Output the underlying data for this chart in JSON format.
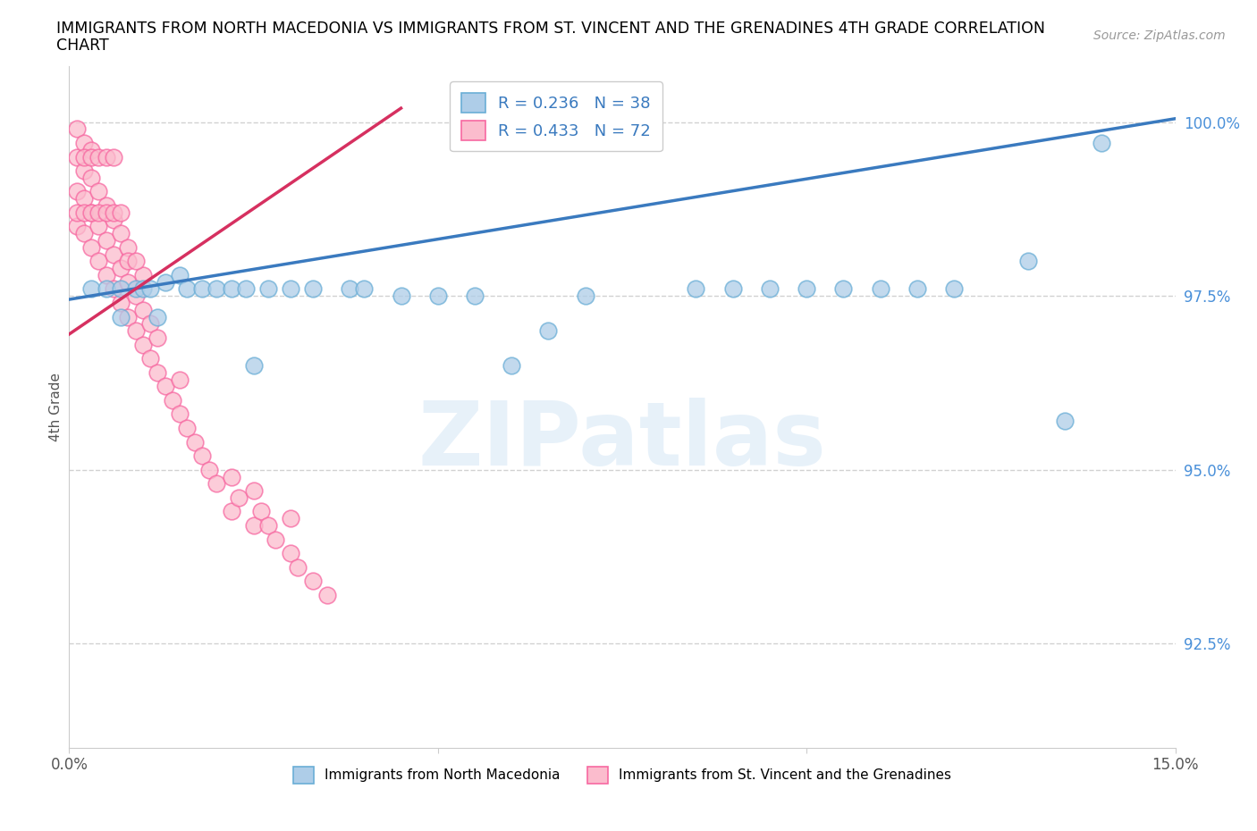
{
  "title_line1": "IMMIGRANTS FROM NORTH MACEDONIA VS IMMIGRANTS FROM ST. VINCENT AND THE GRENADINES 4TH GRADE CORRELATION",
  "title_line2": "CHART",
  "source": "Source: ZipAtlas.com",
  "ylabel": "4th Grade",
  "xlim": [
    0.0,
    0.15
  ],
  "ylim": [
    0.91,
    1.008
  ],
  "xticks": [
    0.0,
    0.05,
    0.1,
    0.15
  ],
  "xticklabels": [
    "0.0%",
    "",
    "",
    "15.0%"
  ],
  "yticks": [
    0.925,
    0.95,
    0.975,
    1.0
  ],
  "yticklabels": [
    "92.5%",
    "95.0%",
    "97.5%",
    "100.0%"
  ],
  "blue_color": "#aecde8",
  "blue_edge": "#6aaed6",
  "pink_color": "#fbbccd",
  "pink_edge": "#f768a1",
  "blue_line_color": "#3a7abf",
  "pink_line_color": "#d63060",
  "ytick_color": "#4a90d9",
  "R_blue": 0.236,
  "N_blue": 38,
  "R_pink": 0.433,
  "N_pink": 72,
  "legend_label_blue": "Immigrants from North Macedonia",
  "legend_label_pink": "Immigrants from St. Vincent and the Grenadines",
  "watermark": "ZIPatlas",
  "blue_line_x0": 0.0,
  "blue_line_y0": 0.9745,
  "blue_line_x1": 0.15,
  "blue_line_y1": 1.0005,
  "pink_line_x0": 0.0,
  "pink_line_y0": 0.9695,
  "pink_line_x1": 0.045,
  "pink_line_y1": 1.002,
  "blue_x": [
    0.003,
    0.005,
    0.007,
    0.009,
    0.01,
    0.011,
    0.013,
    0.015,
    0.016,
    0.018,
    0.02,
    0.022,
    0.024,
    0.027,
    0.03,
    0.033,
    0.038,
    0.04,
    0.045,
    0.05,
    0.055,
    0.06,
    0.065,
    0.07,
    0.085,
    0.09,
    0.095,
    0.1,
    0.105,
    0.11,
    0.115,
    0.12,
    0.13,
    0.135,
    0.007,
    0.012,
    0.025,
    0.14
  ],
  "blue_y": [
    0.976,
    0.976,
    0.976,
    0.976,
    0.976,
    0.976,
    0.977,
    0.978,
    0.976,
    0.976,
    0.976,
    0.976,
    0.976,
    0.976,
    0.976,
    0.976,
    0.976,
    0.976,
    0.975,
    0.975,
    0.975,
    0.965,
    0.97,
    0.975,
    0.976,
    0.976,
    0.976,
    0.976,
    0.976,
    0.976,
    0.976,
    0.976,
    0.98,
    0.957,
    0.972,
    0.972,
    0.965,
    0.997
  ],
  "pink_x": [
    0.001,
    0.001,
    0.001,
    0.001,
    0.002,
    0.002,
    0.002,
    0.002,
    0.003,
    0.003,
    0.003,
    0.003,
    0.004,
    0.004,
    0.004,
    0.005,
    0.005,
    0.005,
    0.006,
    0.006,
    0.006,
    0.007,
    0.007,
    0.007,
    0.008,
    0.008,
    0.008,
    0.009,
    0.009,
    0.01,
    0.01,
    0.01,
    0.011,
    0.011,
    0.012,
    0.012,
    0.013,
    0.014,
    0.015,
    0.015,
    0.016,
    0.017,
    0.018,
    0.019,
    0.02,
    0.022,
    0.022,
    0.023,
    0.025,
    0.025,
    0.026,
    0.027,
    0.028,
    0.03,
    0.03,
    0.031,
    0.033,
    0.035,
    0.001,
    0.002,
    0.003,
    0.004,
    0.005,
    0.006,
    0.002,
    0.003,
    0.004,
    0.005,
    0.006,
    0.007,
    0.008,
    0.009
  ],
  "pink_y": [
    0.985,
    0.99,
    0.995,
    0.999,
    0.984,
    0.989,
    0.993,
    0.997,
    0.982,
    0.987,
    0.992,
    0.996,
    0.98,
    0.985,
    0.99,
    0.978,
    0.983,
    0.988,
    0.976,
    0.981,
    0.986,
    0.974,
    0.979,
    0.984,
    0.972,
    0.977,
    0.982,
    0.97,
    0.975,
    0.968,
    0.973,
    0.978,
    0.966,
    0.971,
    0.964,
    0.969,
    0.962,
    0.96,
    0.958,
    0.963,
    0.956,
    0.954,
    0.952,
    0.95,
    0.948,
    0.944,
    0.949,
    0.946,
    0.942,
    0.947,
    0.944,
    0.942,
    0.94,
    0.938,
    0.943,
    0.936,
    0.934,
    0.932,
    0.987,
    0.987,
    0.987,
    0.987,
    0.987,
    0.987,
    0.995,
    0.995,
    0.995,
    0.995,
    0.995,
    0.987,
    0.98,
    0.98
  ]
}
